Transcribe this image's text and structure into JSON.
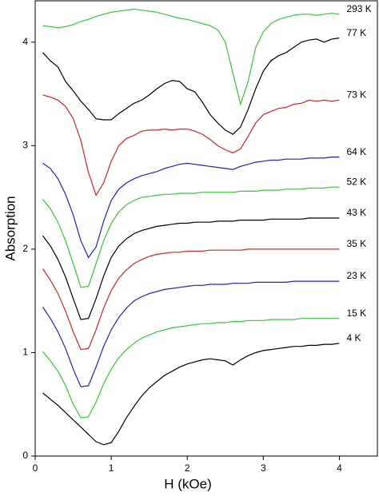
{
  "chart_data": {
    "type": "line",
    "x_label": "H (kOe)",
    "y_label": "Absorption",
    "xlim": [
      0,
      4.5
    ],
    "ylim": [
      0,
      4.4
    ],
    "xticks": [
      0,
      1,
      2,
      3,
      4
    ],
    "yticks": [
      0,
      1,
      2,
      3,
      4
    ],
    "x": [
      0.1,
      0.2,
      0.3,
      0.4,
      0.5,
      0.6,
      0.7,
      0.8,
      0.9,
      1.0,
      1.1,
      1.2,
      1.3,
      1.4,
      1.5,
      1.6,
      1.7,
      1.8,
      1.9,
      2.0,
      2.1,
      2.2,
      2.3,
      2.4,
      2.5,
      2.6,
      2.7,
      2.8,
      2.9,
      3.0,
      3.1,
      3.2,
      3.3,
      3.4,
      3.5,
      3.6,
      3.7,
      3.8,
      3.9,
      4.0
    ],
    "series": [
      {
        "name": "293 K",
        "color": "#33cc33",
        "values": [
          4.16,
          4.15,
          4.14,
          4.15,
          4.17,
          4.2,
          4.22,
          4.25,
          4.27,
          4.29,
          4.3,
          4.31,
          4.32,
          4.31,
          4.3,
          4.29,
          4.27,
          4.25,
          4.23,
          4.22,
          4.2,
          4.18,
          4.16,
          4.12,
          4.0,
          3.7,
          3.4,
          3.62,
          3.95,
          4.1,
          4.18,
          4.22,
          4.24,
          4.26,
          4.27,
          4.27,
          4.26,
          4.27,
          4.28,
          4.27
        ]
      },
      {
        "name": "77 K",
        "color": "#000000",
        "values": [
          3.9,
          3.82,
          3.76,
          3.62,
          3.53,
          3.43,
          3.35,
          3.26,
          3.25,
          3.25,
          3.31,
          3.36,
          3.41,
          3.44,
          3.49,
          3.55,
          3.6,
          3.63,
          3.62,
          3.55,
          3.52,
          3.42,
          3.3,
          3.22,
          3.15,
          3.11,
          3.18,
          3.35,
          3.55,
          3.72,
          3.82,
          3.87,
          3.9,
          3.95,
          4.0,
          4.02,
          4.03,
          4.0,
          4.03,
          4.04
        ]
      },
      {
        "name": "73 K",
        "color": "#e02020",
        "values": [
          3.49,
          3.47,
          3.44,
          3.38,
          3.26,
          3.05,
          2.74,
          2.52,
          2.64,
          2.85,
          3.0,
          3.07,
          3.1,
          3.14,
          3.15,
          3.15,
          3.16,
          3.15,
          3.16,
          3.16,
          3.14,
          3.11,
          3.06,
          3.0,
          2.96,
          2.93,
          2.97,
          3.09,
          3.22,
          3.3,
          3.33,
          3.36,
          3.37,
          3.4,
          3.41,
          3.44,
          3.43,
          3.44,
          3.43,
          3.44
        ]
      },
      {
        "name": "64 K",
        "color": "#1f1fcc",
        "values": [
          2.83,
          2.78,
          2.68,
          2.53,
          2.33,
          2.08,
          1.92,
          2.02,
          2.27,
          2.47,
          2.58,
          2.64,
          2.68,
          2.71,
          2.73,
          2.75,
          2.78,
          2.8,
          2.82,
          2.83,
          2.82,
          2.81,
          2.8,
          2.79,
          2.78,
          2.77,
          2.8,
          2.82,
          2.84,
          2.85,
          2.86,
          2.86,
          2.87,
          2.87,
          2.87,
          2.88,
          2.88,
          2.88,
          2.89,
          2.89
        ]
      },
      {
        "name": "52 K",
        "color": "#33cc33",
        "values": [
          2.48,
          2.39,
          2.26,
          2.08,
          1.86,
          1.63,
          1.64,
          1.86,
          2.08,
          2.25,
          2.36,
          2.43,
          2.47,
          2.5,
          2.51,
          2.52,
          2.53,
          2.53,
          2.54,
          2.54,
          2.54,
          2.55,
          2.55,
          2.55,
          2.55,
          2.55,
          2.56,
          2.56,
          2.56,
          2.57,
          2.57,
          2.57,
          2.58,
          2.58,
          2.58,
          2.59,
          2.59,
          2.59,
          2.6,
          2.6
        ]
      },
      {
        "name": "43 K",
        "color": "#000000",
        "values": [
          2.13,
          2.03,
          1.9,
          1.73,
          1.52,
          1.32,
          1.33,
          1.52,
          1.74,
          1.92,
          2.03,
          2.1,
          2.15,
          2.18,
          2.2,
          2.22,
          2.23,
          2.24,
          2.25,
          2.25,
          2.26,
          2.26,
          2.26,
          2.27,
          2.27,
          2.27,
          2.28,
          2.28,
          2.28,
          2.28,
          2.29,
          2.29,
          2.29,
          2.29,
          2.29,
          2.3,
          2.3,
          2.3,
          2.3,
          2.3
        ]
      },
      {
        "name": "35 K",
        "color": "#e02020",
        "values": [
          1.81,
          1.7,
          1.57,
          1.4,
          1.2,
          1.03,
          1.04,
          1.22,
          1.43,
          1.6,
          1.72,
          1.8,
          1.86,
          1.9,
          1.93,
          1.95,
          1.96,
          1.97,
          1.97,
          1.98,
          1.98,
          1.98,
          1.99,
          1.99,
          1.99,
          1.99,
          1.99,
          2.0,
          2.0,
          2.0,
          2.0,
          2.0,
          2.0,
          2.0,
          2.0,
          2.0,
          2.0,
          2.0,
          2.0,
          2.0
        ]
      },
      {
        "name": "23 K",
        "color": "#1f1fcc",
        "values": [
          1.44,
          1.33,
          1.2,
          1.04,
          0.84,
          0.67,
          0.68,
          0.86,
          1.06,
          1.22,
          1.34,
          1.43,
          1.5,
          1.54,
          1.57,
          1.59,
          1.61,
          1.62,
          1.63,
          1.64,
          1.65,
          1.65,
          1.66,
          1.66,
          1.66,
          1.67,
          1.67,
          1.67,
          1.68,
          1.68,
          1.68,
          1.68,
          1.68,
          1.69,
          1.69,
          1.69,
          1.69,
          1.69,
          1.69,
          1.69
        ]
      },
      {
        "name": "15 K",
        "color": "#33cc33",
        "values": [
          1.01,
          0.92,
          0.82,
          0.68,
          0.5,
          0.37,
          0.38,
          0.52,
          0.7,
          0.84,
          0.95,
          1.03,
          1.09,
          1.14,
          1.17,
          1.2,
          1.22,
          1.24,
          1.25,
          1.26,
          1.27,
          1.28,
          1.28,
          1.29,
          1.29,
          1.3,
          1.3,
          1.31,
          1.31,
          1.31,
          1.32,
          1.32,
          1.32,
          1.32,
          1.33,
          1.33,
          1.33,
          1.33,
          1.33,
          1.33
        ]
      },
      {
        "name": "4 K",
        "color": "#000000",
        "values": [
          0.61,
          0.55,
          0.49,
          0.42,
          0.35,
          0.28,
          0.21,
          0.14,
          0.11,
          0.13,
          0.24,
          0.37,
          0.48,
          0.58,
          0.66,
          0.72,
          0.78,
          0.82,
          0.86,
          0.89,
          0.91,
          0.93,
          0.94,
          0.93,
          0.92,
          0.88,
          0.93,
          0.97,
          1.0,
          1.02,
          1.03,
          1.04,
          1.05,
          1.06,
          1.06,
          1.07,
          1.07,
          1.08,
          1.08,
          1.09
        ]
      }
    ]
  }
}
